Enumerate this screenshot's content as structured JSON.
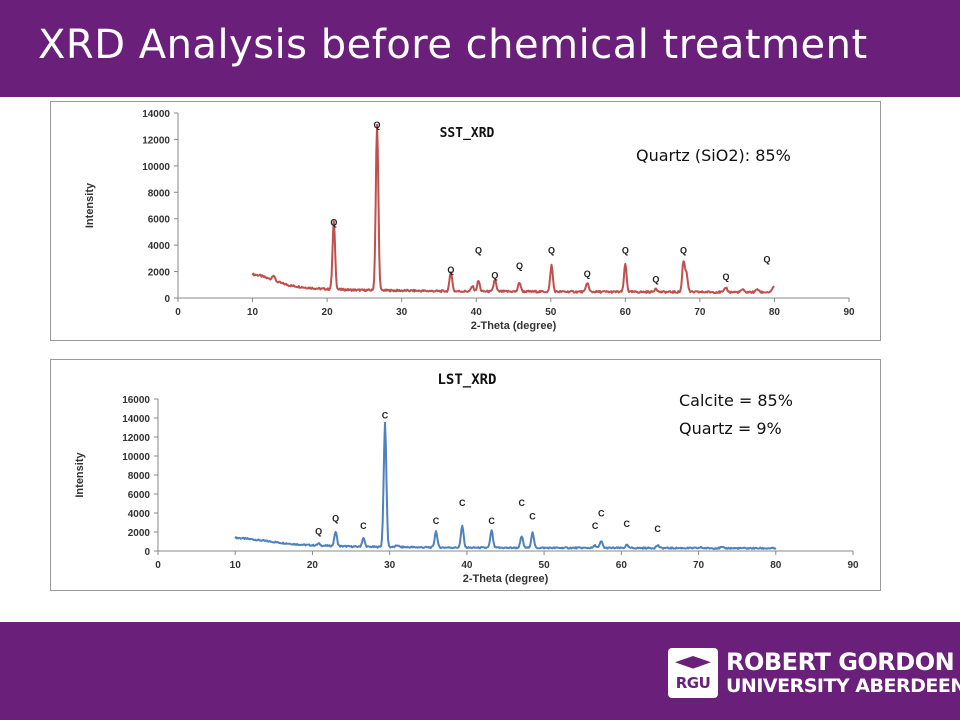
{
  "header": {
    "title": "XRD Analysis before chemical treatment"
  },
  "logo": {
    "badge_text": "RGU",
    "line1": "ROBERT GORDON",
    "line2": "UNIVERSITY ABERDEEN"
  },
  "colors": {
    "brand": "#6a1f7a",
    "sst_line": "#c0504d",
    "lst_line": "#4f81bd"
  },
  "annotations": {
    "sst": [
      "Quartz (SiO2): 85%"
    ],
    "lst": [
      "Calcite = 85%",
      "Quartz = 9%"
    ]
  },
  "chart_data": [
    {
      "type": "line",
      "title": "SST_XRD",
      "xlabel": "2-Theta (degree)",
      "ylabel": "Intensity",
      "xlim": [
        0,
        90
      ],
      "ylim": [
        0,
        14000
      ],
      "xticks": [
        0,
        10,
        20,
        30,
        40,
        50,
        60,
        70,
        80,
        90
      ],
      "yticks": [
        0,
        2000,
        4000,
        6000,
        8000,
        10000,
        12000,
        14000
      ],
      "grid": false,
      "series": [
        {
          "baseline": [
            [
              10,
              1800
            ],
            [
              11,
              1700
            ],
            [
              12,
              1500
            ],
            [
              13,
              1300
            ],
            [
              14,
              1100
            ],
            [
              15,
              950
            ],
            [
              17,
              800
            ],
            [
              19,
              700
            ],
            [
              21,
              650
            ],
            [
              24,
              600
            ],
            [
              27,
              580
            ],
            [
              30,
              560
            ],
            [
              35,
              520
            ],
            [
              40,
              500
            ],
            [
              50,
              480
            ],
            [
              60,
              460
            ],
            [
              70,
              450
            ],
            [
              80,
              440
            ]
          ],
          "peaks": [
            [
              12.8,
              400
            ],
            [
              20.9,
              5100
            ],
            [
              26.7,
              12500
            ],
            [
              36.6,
              1500
            ],
            [
              39.5,
              400
            ],
            [
              40.3,
              800
            ],
            [
              42.5,
              900
            ],
            [
              45.8,
              700
            ],
            [
              50.1,
              2000
            ],
            [
              54.9,
              700
            ],
            [
              60.0,
              2100
            ],
            [
              64.1,
              300
            ],
            [
              67.8,
              2300
            ],
            [
              68.2,
              1400
            ],
            [
              73.5,
              350
            ],
            [
              75.7,
              200
            ],
            [
              77.7,
              250
            ],
            [
              79.9,
              450
            ]
          ]
        }
      ],
      "peak_labels": [
        {
          "x": 20.9,
          "y": 5100,
          "label": "Q"
        },
        {
          "x": 26.7,
          "y": 12500,
          "label": "Q"
        },
        {
          "x": 36.6,
          "y": 1500,
          "label": "Q"
        },
        {
          "x": 40.3,
          "y": 3000,
          "label": "Q"
        },
        {
          "x": 42.5,
          "y": 1100,
          "label": "Q"
        },
        {
          "x": 45.8,
          "y": 1800,
          "label": "Q"
        },
        {
          "x": 50.1,
          "y": 3000,
          "label": "Q"
        },
        {
          "x": 54.9,
          "y": 1200,
          "label": "Q"
        },
        {
          "x": 60.0,
          "y": 3000,
          "label": "Q"
        },
        {
          "x": 64.1,
          "y": 800,
          "label": "Q"
        },
        {
          "x": 67.8,
          "y": 3000,
          "label": "Q"
        },
        {
          "x": 73.5,
          "y": 1000,
          "label": "Q"
        },
        {
          "x": 79.0,
          "y": 2300,
          "label": "Q"
        }
      ]
    },
    {
      "type": "line",
      "title": "LST_XRD",
      "xlabel": "2-Theta (degree)",
      "ylabel": "Intensity",
      "xlim": [
        0,
        90
      ],
      "ylim": [
        0,
        16000
      ],
      "xticks": [
        0,
        10,
        20,
        30,
        40,
        50,
        60,
        70,
        80,
        90
      ],
      "yticks": [
        0,
        2000,
        4000,
        6000,
        8000,
        10000,
        12000,
        14000,
        16000
      ],
      "grid": false,
      "series": [
        {
          "baseline": [
            [
              10,
              1400
            ],
            [
              12,
              1250
            ],
            [
              14,
              1050
            ],
            [
              16,
              850
            ],
            [
              18,
              700
            ],
            [
              20,
              600
            ],
            [
              23,
              520
            ],
            [
              26,
              450
            ],
            [
              30,
              420
            ],
            [
              35,
              380
            ],
            [
              40,
              350
            ],
            [
              50,
              330
            ],
            [
              60,
              320
            ],
            [
              70,
              300
            ],
            [
              80,
              280
            ]
          ],
          "peaks": [
            [
              20.8,
              200
            ],
            [
              23.0,
              1500
            ],
            [
              26.6,
              900
            ],
            [
              29.4,
              13000
            ],
            [
              31.0,
              200
            ],
            [
              36.0,
              1700
            ],
            [
              39.4,
              2300
            ],
            [
              43.2,
              1800
            ],
            [
              47.1,
              1200
            ],
            [
              48.5,
              1600
            ],
            [
              56.6,
              250
            ],
            [
              57.4,
              700
            ],
            [
              60.7,
              300
            ],
            [
              64.7,
              300
            ],
            [
              70.3,
              80
            ],
            [
              73.0,
              100
            ]
          ]
        }
      ],
      "peak_labels": [
        {
          "x": 20.8,
          "y": 1200,
          "label": "Q"
        },
        {
          "x": 23.0,
          "y": 2600,
          "label": "Q"
        },
        {
          "x": 26.6,
          "y": 1800,
          "label": "C"
        },
        {
          "x": 29.4,
          "y": 13400,
          "label": "C"
        },
        {
          "x": 36.0,
          "y": 2300,
          "label": "C"
        },
        {
          "x": 39.4,
          "y": 4200,
          "label": "C"
        },
        {
          "x": 43.2,
          "y": 2300,
          "label": "C"
        },
        {
          "x": 47.1,
          "y": 4200,
          "label": "C"
        },
        {
          "x": 48.5,
          "y": 2800,
          "label": "C"
        },
        {
          "x": 56.6,
          "y": 1800,
          "label": "C"
        },
        {
          "x": 57.4,
          "y": 3100,
          "label": "C"
        },
        {
          "x": 60.7,
          "y": 2000,
          "label": "C"
        },
        {
          "x": 64.7,
          "y": 1500,
          "label": "C"
        }
      ]
    }
  ]
}
